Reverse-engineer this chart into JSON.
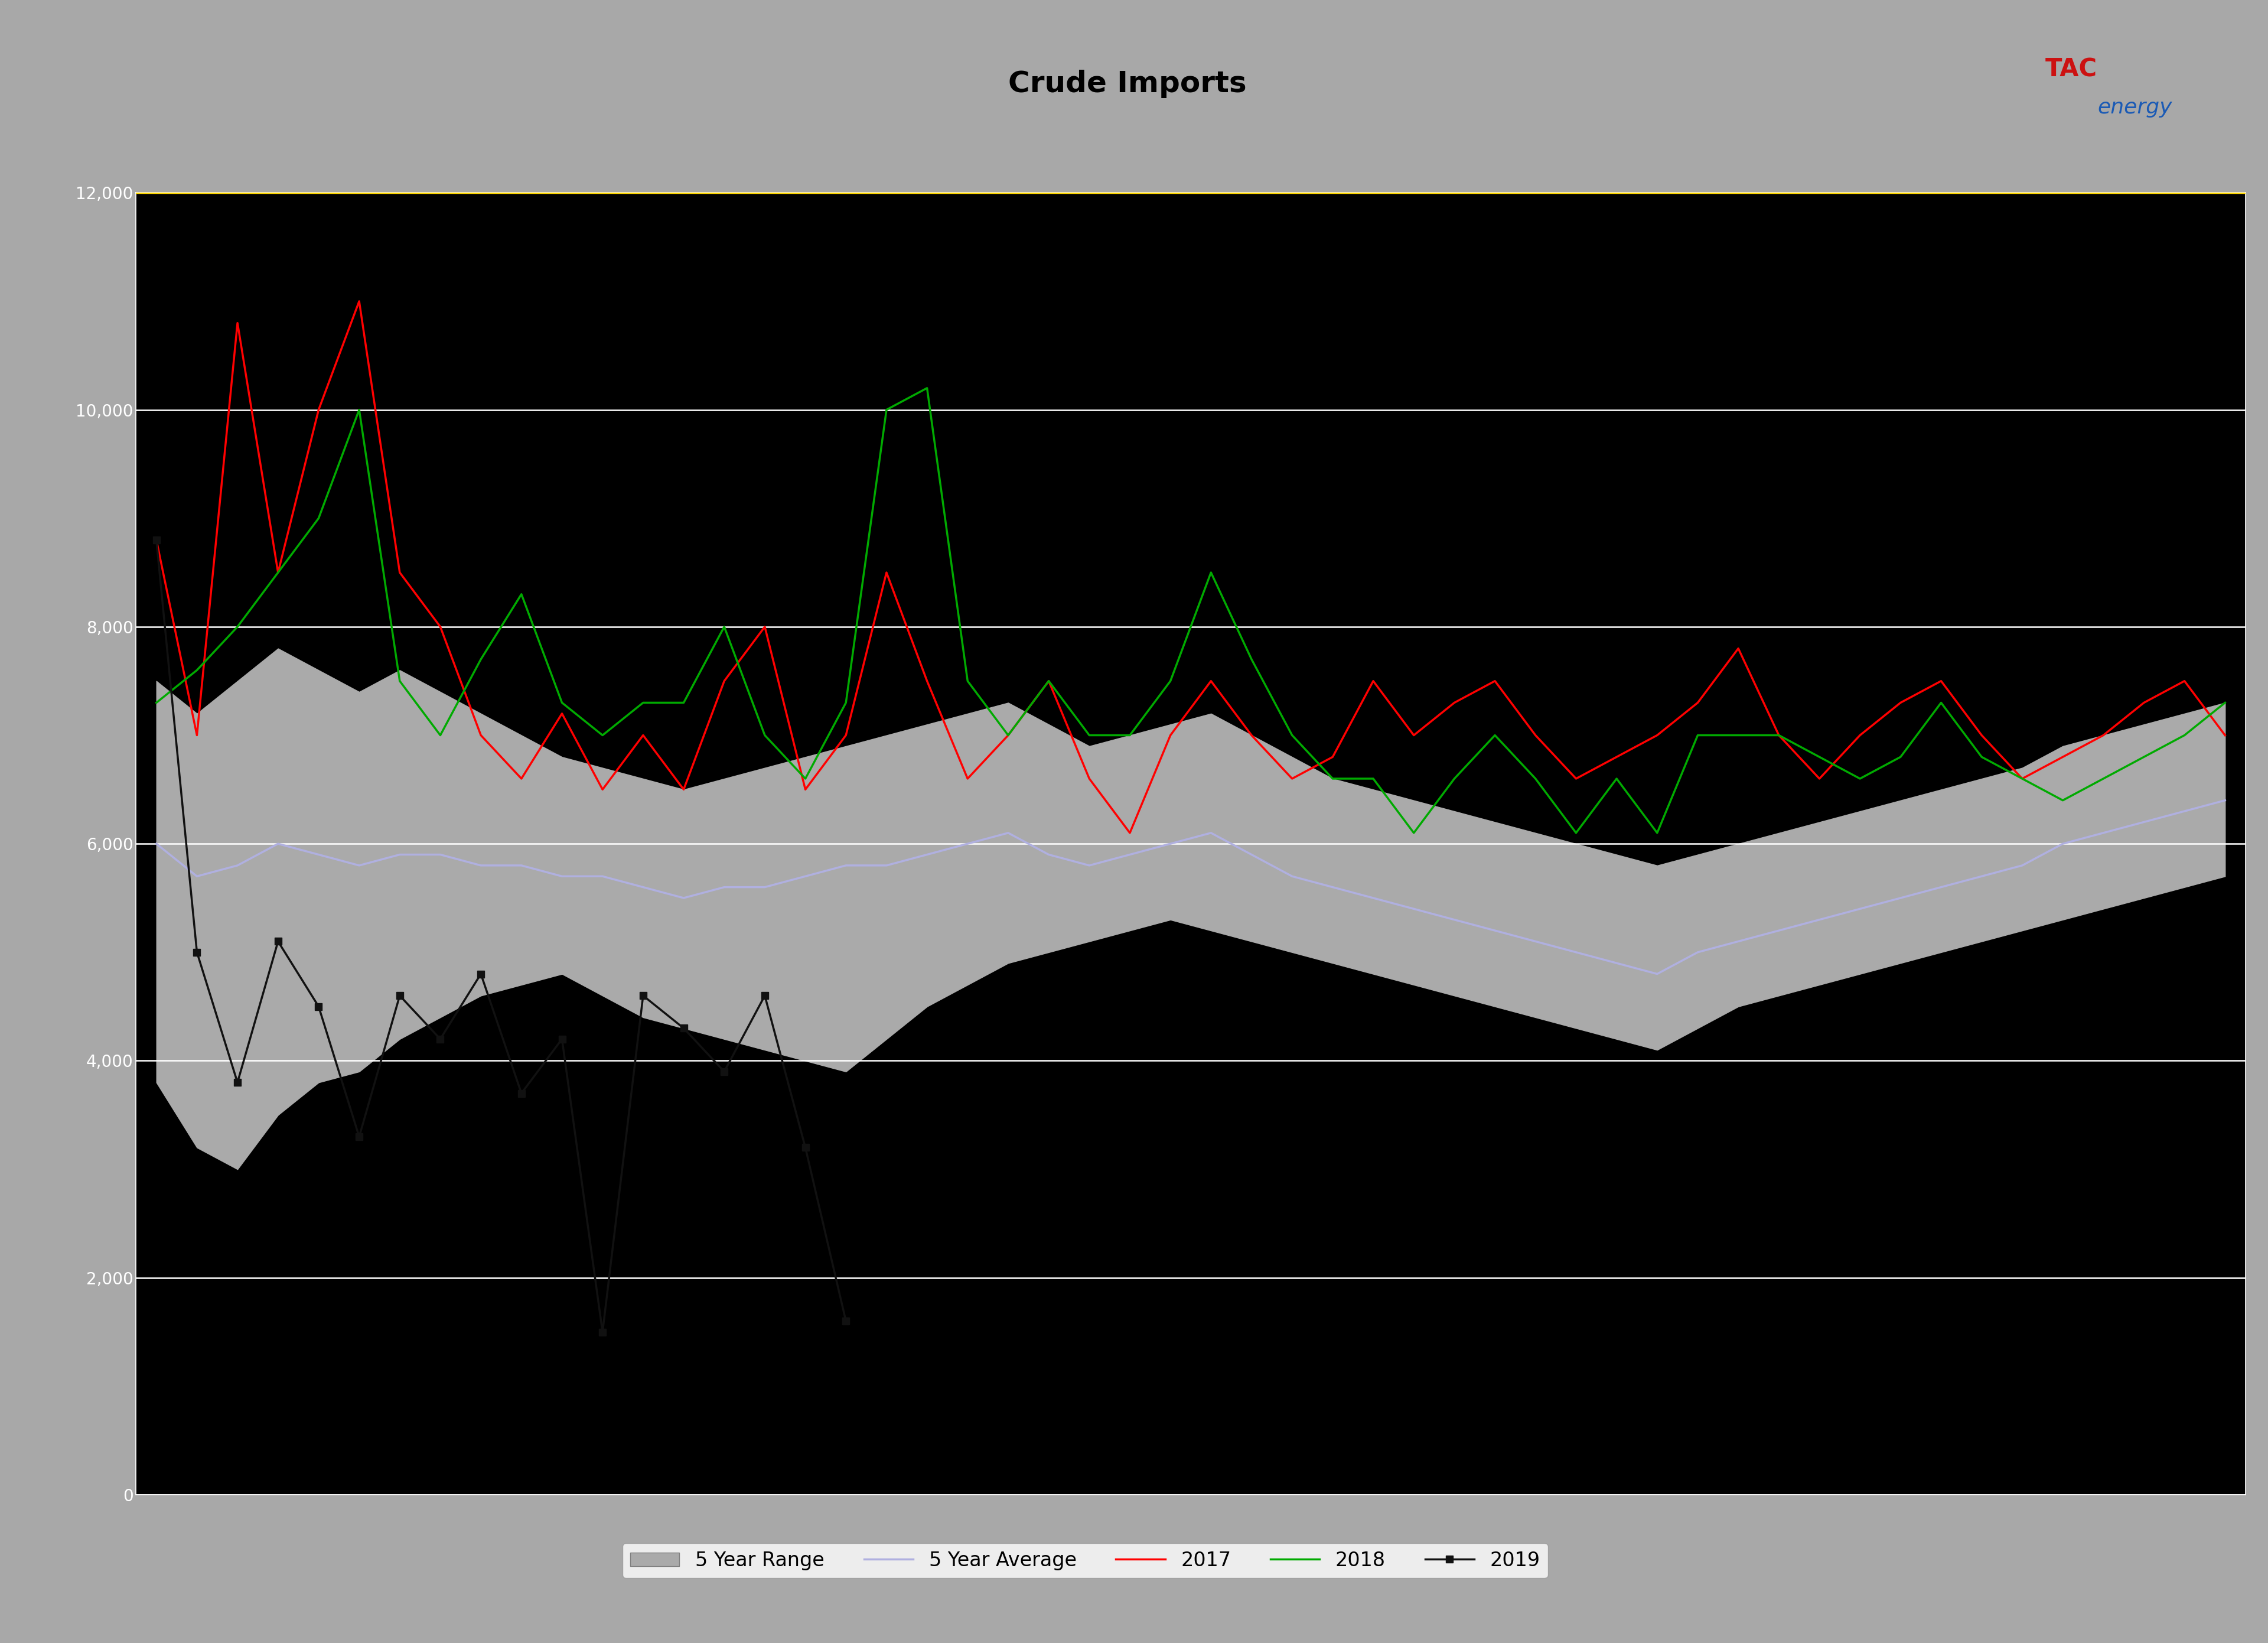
{
  "title": "Crude Imports",
  "title_fontsize": 36,
  "header_bg_color": "#a8a8a8",
  "blue_bar_color": "#1a5ab5",
  "yellow_line_color": "#ffd700",
  "plot_bg_color": "#000000",
  "grid_color": "#ffffff",
  "range_fill_color": "#aaaaaa",
  "range_alpha": 1.0,
  "avg_line_color": "#b0b0e0",
  "line_2017_color": "#ff0000",
  "line_2018_color": "#00aa00",
  "line_2019_color": "#000000",
  "line_2019_marker_color": "#111111",
  "ylim_low": 0,
  "ylim_high": 12000,
  "ytick_step": 2000,
  "logo_tac_color": "#cc1111",
  "logo_energy_color": "#1a5ab5",
  "n_points": 52,
  "range_low": [
    3800,
    3200,
    3000,
    3500,
    3800,
    3900,
    4200,
    4400,
    4600,
    4700,
    4800,
    4600,
    4400,
    4300,
    4200,
    4100,
    4000,
    3900,
    4200,
    4500,
    4700,
    4900,
    5000,
    5100,
    5200,
    5300,
    5200,
    5100,
    5000,
    4900,
    4800,
    4700,
    4600,
    4500,
    4400,
    4300,
    4200,
    4100,
    4300,
    4500,
    4600,
    4700,
    4800,
    4900,
    5000,
    5100,
    5200,
    5300,
    5400,
    5500,
    5600,
    5700
  ],
  "range_high": [
    7500,
    7200,
    7500,
    7800,
    7600,
    7400,
    7600,
    7400,
    7200,
    7000,
    6800,
    6700,
    6600,
    6500,
    6600,
    6700,
    6800,
    6900,
    7000,
    7100,
    7200,
    7300,
    7100,
    6900,
    7000,
    7100,
    7200,
    7000,
    6800,
    6600,
    6500,
    6400,
    6300,
    6200,
    6100,
    6000,
    5900,
    5800,
    5900,
    6000,
    6100,
    6200,
    6300,
    6400,
    6500,
    6600,
    6700,
    6900,
    7000,
    7100,
    7200,
    7300
  ],
  "avg": [
    6000,
    5700,
    5800,
    6000,
    5900,
    5800,
    5900,
    5900,
    5800,
    5800,
    5700,
    5700,
    5600,
    5500,
    5600,
    5600,
    5700,
    5800,
    5800,
    5900,
    6000,
    6100,
    5900,
    5800,
    5900,
    6000,
    6100,
    5900,
    5700,
    5600,
    5500,
    5400,
    5300,
    5200,
    5100,
    5000,
    4900,
    4800,
    5000,
    5100,
    5200,
    5300,
    5400,
    5500,
    5600,
    5700,
    5800,
    6000,
    6100,
    6200,
    6300,
    6400
  ],
  "line_2017": [
    8800,
    7000,
    10800,
    8500,
    10000,
    11000,
    8500,
    8000,
    7000,
    6600,
    7200,
    6500,
    7000,
    6500,
    7500,
    8000,
    6500,
    7000,
    8500,
    7500,
    6600,
    7000,
    7500,
    6600,
    6100,
    7000,
    7500,
    7000,
    6600,
    6800,
    7500,
    7000,
    7300,
    7500,
    7000,
    6600,
    6800,
    7000,
    7300,
    7800,
    7000,
    6600,
    7000,
    7300,
    7500,
    7000,
    6600,
    6800,
    7000,
    7300,
    7500,
    7000
  ],
  "line_2018": [
    7300,
    7600,
    8000,
    8500,
    9000,
    10000,
    7500,
    7000,
    7700,
    8300,
    7300,
    7000,
    7300,
    7300,
    8000,
    7000,
    6600,
    7300,
    10000,
    10200,
    7500,
    7000,
    7500,
    7000,
    7000,
    7500,
    8500,
    7700,
    7000,
    6600,
    6600,
    6100,
    6600,
    7000,
    6600,
    6100,
    6600,
    6100,
    7000,
    7000,
    7000,
    6800,
    6600,
    6800,
    7300,
    6800,
    6600,
    6400,
    6600,
    6800,
    7000,
    7300
  ],
  "line_2019_x": [
    0,
    1,
    2,
    3,
    4,
    5,
    6,
    7,
    8,
    9,
    10,
    11,
    12,
    13,
    14,
    15,
    16,
    17
  ],
  "line_2019_y": [
    8800,
    5000,
    3800,
    5100,
    4500,
    3300,
    4600,
    4200,
    4800,
    3700,
    4200,
    1500,
    4600,
    4300,
    3900,
    4600,
    3200,
    1600
  ],
  "lw": 2.5,
  "marker_size": 9
}
